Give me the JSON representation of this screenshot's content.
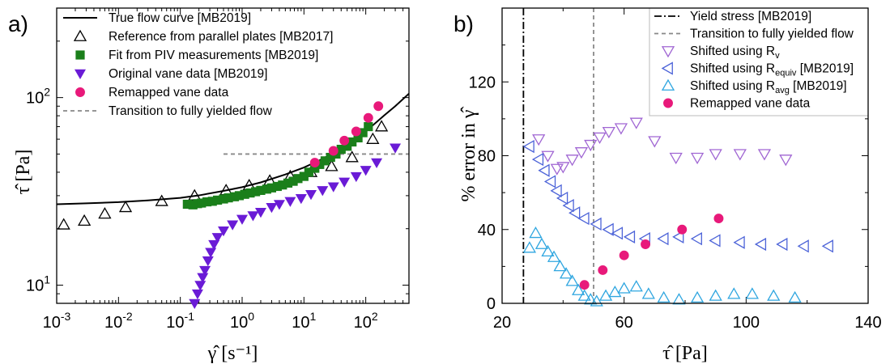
{
  "panels": {
    "a_label": "a)",
    "b_label": "b)"
  },
  "chart_data": [
    {
      "id": "a",
      "type": "scatter",
      "x_scale": "log",
      "y_scale": "log",
      "xlim": [
        0.001,
        500
      ],
      "ylim": [
        8,
        300
      ],
      "xlabel": "γ̂ [s⁻¹]",
      "ylabel": "τ̂ [Pa]",
      "x_ticks": [
        {
          "value": 0.001,
          "base": "10",
          "exp": "-3"
        },
        {
          "value": 0.01,
          "base": "10",
          "exp": "-2"
        },
        {
          "value": 0.1,
          "base": "10",
          "exp": "-1"
        },
        {
          "value": 1,
          "base": "10",
          "exp": "0"
        },
        {
          "value": 10,
          "base": "10",
          "exp": "1"
        },
        {
          "value": 100,
          "base": "10",
          "exp": "2"
        }
      ],
      "y_ticks": [
        {
          "value": 10,
          "base": "10",
          "exp": "1"
        },
        {
          "value": 100,
          "base": "10",
          "exp": "2"
        }
      ],
      "legend_position": "top-left",
      "series": [
        {
          "name": "True flow curve [MB2019]",
          "kind": "line",
          "color": "#000000",
          "x": [
            0.001,
            0.003,
            0.01,
            0.03,
            0.1,
            0.2,
            0.5,
            1,
            2,
            5,
            10,
            20,
            50,
            100,
            200,
            300,
            500
          ],
          "y": [
            27,
            27.3,
            27.7,
            28.3,
            29.2,
            30.1,
            31.8,
            33.3,
            35.3,
            38.9,
            42.4,
            47.1,
            56.3,
            66,
            80.5,
            90,
            105
          ]
        },
        {
          "name": "Reference from parallel plates [MB2017]",
          "kind": "marker",
          "marker": "triangle-up-open",
          "color": "#000000",
          "x": [
            0.0013,
            0.0028,
            0.006,
            0.013,
            0.05,
            0.17,
            0.55,
            1.3,
            2.8,
            6,
            13,
            28,
            60,
            130,
            180
          ],
          "y": [
            21,
            22,
            24,
            26,
            28,
            30,
            32,
            34,
            36,
            38,
            40,
            43,
            48,
            60,
            70
          ]
        },
        {
          "name": "Fit from PIV measurements [MB2019]",
          "kind": "marker",
          "marker": "square-filled",
          "color": "#1a7f1a",
          "x": [
            0.13,
            0.16,
            0.19,
            0.22,
            0.27,
            0.33,
            0.4,
            0.5,
            0.6,
            0.75,
            0.9,
            1.1,
            1.35,
            1.65,
            2,
            2.5,
            3,
            3.7,
            4.5,
            5.5,
            6.7,
            8,
            10,
            12,
            15,
            18,
            22,
            27,
            33,
            40,
            50,
            60,
            75,
            90,
            110
          ],
          "y": [
            27,
            26.8,
            27.2,
            27.4,
            27.8,
            28,
            28.4,
            28.8,
            29.2,
            29.6,
            30,
            30.5,
            31,
            31.5,
            32,
            32.5,
            33,
            33.6,
            34.2,
            35,
            35.8,
            37,
            38,
            40,
            42,
            44,
            46,
            48,
            50,
            53,
            55,
            58,
            61,
            65,
            70
          ]
        },
        {
          "name": "Original vane data [MB2019]",
          "kind": "marker",
          "marker": "triangle-down-filled",
          "color": "#6a1bd6",
          "x": [
            0.17,
            0.19,
            0.21,
            0.23,
            0.25,
            0.28,
            0.31,
            0.35,
            0.4,
            0.5,
            0.7,
            1,
            1.5,
            2,
            3,
            4,
            6,
            9,
            13,
            20,
            30,
            45,
            70,
            100,
            150,
            300
          ],
          "y": [
            8,
            9,
            10,
            11,
            12,
            13.5,
            15,
            16.5,
            18,
            19.5,
            21,
            22.5,
            23.5,
            24.5,
            26,
            27,
            28,
            29,
            30.5,
            32,
            33.5,
            35.5,
            38,
            41,
            45,
            54
          ]
        },
        {
          "name": "Remapped vane data",
          "kind": "marker",
          "marker": "circle-filled",
          "color": "#e8197a",
          "x": [
            15,
            30,
            45,
            70,
            110,
            160
          ],
          "y": [
            45,
            52,
            59,
            66,
            78,
            90
          ]
        },
        {
          "name": "Transition to fully yielded flow",
          "kind": "dashed-line",
          "color": "#888888",
          "x": [
            0.5,
            500
          ],
          "y": [
            50,
            50
          ]
        }
      ]
    },
    {
      "id": "b",
      "type": "scatter",
      "x_scale": "linear",
      "y_scale": "linear",
      "xlim": [
        20,
        140
      ],
      "ylim": [
        0,
        160
      ],
      "xlabel": "τ̂ [Pa]",
      "ylabel": "% error in γ̂",
      "x_ticks": [
        20,
        60,
        100,
        140
      ],
      "y_ticks": [
        0,
        40,
        80,
        120
      ],
      "legend_position": "top-right",
      "series": [
        {
          "name": "Yield stress [MB2019]",
          "kind": "dashdot-vline",
          "color": "#000000",
          "x": 27
        },
        {
          "name": "Transition to fully yielded flow",
          "kind": "dashed-vline",
          "color": "#888888",
          "x": 50
        },
        {
          "name": "Shifted using R",
          "sub": "v",
          "post": "",
          "kind": "marker",
          "marker": "triangle-down-open",
          "color": "#a066d3",
          "x": [
            32,
            35,
            38,
            40,
            43,
            46,
            49,
            52,
            55,
            59,
            64,
            70,
            77,
            84,
            90,
            98,
            106,
            113
          ],
          "y": [
            89,
            80,
            73,
            74,
            78,
            82,
            86,
            90,
            93,
            95,
            98,
            88,
            79,
            79,
            81,
            81,
            81,
            78
          ]
        },
        {
          "name": "Shifted using R",
          "sub": "equiv",
          "post": " [MB2019]",
          "kind": "marker",
          "marker": "triangle-left-open",
          "color": "#4c63d8",
          "x": [
            29,
            32,
            34,
            36,
            38,
            40,
            42,
            44,
            47,
            51,
            55,
            58,
            62,
            67,
            73,
            78,
            84,
            90,
            98,
            105,
            112,
            119,
            127
          ],
          "y": [
            85,
            78,
            72,
            66,
            61,
            57,
            53,
            49,
            46,
            43,
            40,
            38,
            36,
            35,
            35,
            36,
            35,
            34,
            33,
            32,
            32,
            31,
            31
          ]
        },
        {
          "name": "Shifted using R",
          "sub": "avg",
          "post": " [MB2019]",
          "kind": "marker",
          "marker": "triangle-up-open",
          "color": "#2fa6e0",
          "x": [
            29,
            31,
            33,
            35,
            37,
            39,
            41,
            43,
            45,
            47,
            49,
            51,
            54,
            57,
            60,
            64,
            68,
            73,
            78,
            84,
            90,
            96,
            102,
            109,
            116
          ],
          "y": [
            30,
            38,
            32,
            28,
            25,
            20,
            16,
            12,
            7,
            4,
            2,
            1,
            4,
            6,
            8,
            9,
            5,
            3,
            2,
            3,
            4,
            5,
            5,
            4,
            3
          ]
        },
        {
          "name": "Remapped vane data",
          "kind": "marker",
          "marker": "circle-filled",
          "color": "#e8197a",
          "x": [
            47,
            53,
            60,
            67,
            79,
            91
          ],
          "y": [
            10,
            18,
            26,
            32,
            40,
            46
          ]
        }
      ]
    }
  ]
}
